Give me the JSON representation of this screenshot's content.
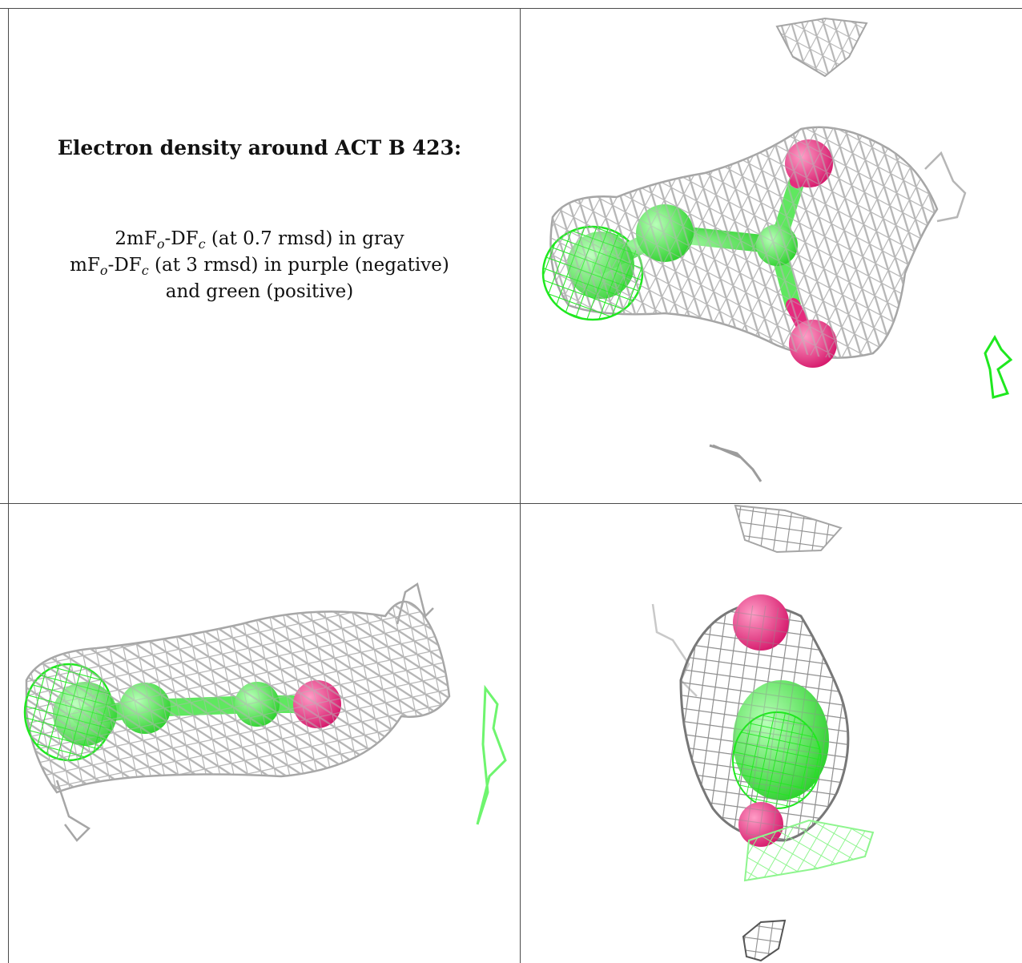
{
  "caption": {
    "title": "Electron density around ACT B 423:",
    "line1": {
      "a": "2mF",
      "b": "o",
      "c": "-DF",
      "d": "c",
      "e": " (at 0.7 rmsd) in gray"
    },
    "line2": {
      "a": "mF",
      "b": "o",
      "c": "-DF",
      "d": "c",
      "e": " (at 3 rmsd) in purple (negative)"
    },
    "line3": "and green (positive)"
  },
  "colors": {
    "mesh_gray": "#b9b9b9",
    "mesh_green": "#22ee22",
    "atom_green": "#55ee55",
    "atom_magenta": "#e62b7e",
    "border": "#4a4a4a"
  }
}
